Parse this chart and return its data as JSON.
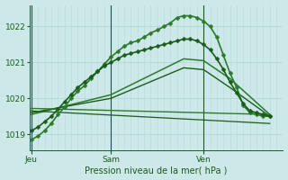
{
  "bg_color": "#cce8e8",
  "grid_color_h": "#b0d4d4",
  "grid_color_v": "#b8d8d8",
  "dark_line_color": "#1a5c1a",
  "mid_line_color": "#2d7a2d",
  "ylabel_text": "Pression niveau de la mer( hPa )",
  "ytick_labels": [
    "1019",
    "1020",
    "1021",
    "1022"
  ],
  "yticks": [
    1019,
    1020,
    1021,
    1022
  ],
  "ylim": [
    1018.55,
    1022.6
  ],
  "xtick_labels": [
    "Jeu",
    "Sam",
    "Ven"
  ],
  "xtick_pos": [
    0,
    12,
    26
  ],
  "xlim": [
    -0.3,
    38
  ],
  "vline_x": [
    0,
    12,
    26
  ],
  "num_vcells": 38,
  "lines": [
    {
      "comment": "steep line with markers - rises to ~1022.3 peak",
      "x": [
        0,
        1,
        2,
        3,
        4,
        5,
        6,
        7,
        8,
        9,
        10,
        11,
        12,
        13,
        14,
        15,
        16,
        17,
        18,
        19,
        20,
        21,
        22,
        23,
        24,
        25,
        26,
        27,
        28,
        29,
        30,
        31,
        32,
        33,
        34,
        35,
        36
      ],
      "y": [
        1018.85,
        1018.95,
        1019.1,
        1019.3,
        1019.55,
        1019.75,
        1020.0,
        1020.2,
        1020.35,
        1020.55,
        1020.75,
        1020.95,
        1021.15,
        1021.3,
        1021.45,
        1021.55,
        1021.6,
        1021.7,
        1021.82,
        1021.9,
        1022.0,
        1022.1,
        1022.25,
        1022.3,
        1022.3,
        1022.25,
        1022.15,
        1022.0,
        1021.7,
        1021.2,
        1020.7,
        1020.3,
        1019.8,
        1019.6,
        1019.55,
        1019.5,
        1019.5
      ],
      "color": "#2d7a2d",
      "lw": 1.2,
      "has_marker": true,
      "markersize": 2.5
    },
    {
      "comment": "second steep line with markers - rises to ~1021.7 peak",
      "x": [
        0,
        1,
        2,
        3,
        4,
        5,
        6,
        7,
        8,
        9,
        10,
        11,
        12,
        13,
        14,
        15,
        16,
        17,
        18,
        19,
        20,
        21,
        22,
        23,
        24,
        25,
        26,
        27,
        28,
        29,
        30,
        31,
        32,
        33,
        34,
        35,
        36
      ],
      "y": [
        1019.1,
        1019.2,
        1019.35,
        1019.5,
        1019.7,
        1019.9,
        1020.1,
        1020.3,
        1020.45,
        1020.6,
        1020.75,
        1020.9,
        1021.0,
        1021.1,
        1021.2,
        1021.25,
        1021.3,
        1021.35,
        1021.4,
        1021.45,
        1021.5,
        1021.55,
        1021.6,
        1021.65,
        1021.65,
        1021.6,
        1021.5,
        1021.35,
        1021.1,
        1020.8,
        1020.45,
        1020.15,
        1019.85,
        1019.65,
        1019.6,
        1019.55,
        1019.5
      ],
      "color": "#1a5c1a",
      "lw": 1.2,
      "has_marker": true,
      "markersize": 2.5
    },
    {
      "comment": "medium rise line - no markers, rises to ~1021.1",
      "x": [
        0,
        12,
        23,
        26,
        30,
        36
      ],
      "y": [
        1019.55,
        1020.1,
        1021.1,
        1021.05,
        1020.55,
        1019.55
      ],
      "color": "#2d7a2d",
      "lw": 1.1,
      "has_marker": false,
      "markersize": 0
    },
    {
      "comment": "medium rise line 2 - no markers, slightly lower",
      "x": [
        0,
        12,
        23,
        26,
        30,
        36
      ],
      "y": [
        1019.6,
        1020.0,
        1020.85,
        1020.8,
        1020.3,
        1019.5
      ],
      "color": "#1a5c1a",
      "lw": 1.0,
      "has_marker": false,
      "markersize": 0
    },
    {
      "comment": "nearly flat line 1 - very slight decline",
      "x": [
        0,
        36
      ],
      "y": [
        1019.72,
        1019.55
      ],
      "color": "#2d7a2d",
      "lw": 1.0,
      "has_marker": false,
      "markersize": 0
    },
    {
      "comment": "nearly flat line 2 - slight decline, lower",
      "x": [
        0,
        36
      ],
      "y": [
        1019.65,
        1019.3
      ],
      "color": "#1a5c1a",
      "lw": 0.9,
      "has_marker": false,
      "markersize": 0
    }
  ]
}
